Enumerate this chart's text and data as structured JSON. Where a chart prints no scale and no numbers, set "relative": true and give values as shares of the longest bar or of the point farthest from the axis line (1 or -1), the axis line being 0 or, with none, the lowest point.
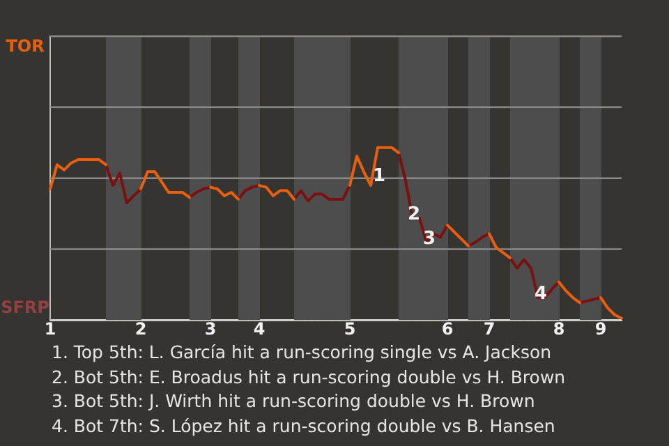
{
  "chart_data": {
    "type": "line",
    "relative": true,
    "categories": [
      "1",
      null,
      null,
      null,
      null,
      null,
      null,
      null,
      null,
      null,
      null,
      null,
      null,
      "2",
      null,
      null,
      null,
      null,
      null,
      null,
      null,
      null,
      null,
      "3",
      null,
      null,
      null,
      null,
      null,
      null,
      "4",
      null,
      null,
      null,
      null,
      null,
      null,
      null,
      null,
      null,
      null,
      null,
      null,
      "5",
      null,
      null,
      null,
      null,
      null,
      null,
      null,
      null,
      null,
      null,
      null,
      null,
      null,
      "6",
      null,
      null,
      null,
      null,
      null,
      "7",
      null,
      null,
      null,
      null,
      null,
      null,
      null,
      null,
      null,
      "8",
      null,
      null,
      null,
      null,
      null,
      "9",
      null,
      null,
      null
    ],
    "marker": "none",
    "series": [
      {
        "color": "#e8600c",
        "values": [
          0.76,
          0.9,
          0.87,
          0.91,
          0.93,
          0.93,
          0.93,
          0.93,
          0.9,
          null,
          null,
          null,
          null,
          0.76,
          0.86,
          0.86,
          0.8,
          0.74,
          0.74,
          0.74,
          0.71,
          null,
          null,
          0.77,
          0.76,
          0.72,
          0.74,
          0.7,
          null,
          null,
          0.78,
          0.77,
          0.72,
          0.75,
          0.75,
          0.7,
          null,
          null,
          null,
          null,
          null,
          null,
          null,
          0.78,
          0.95,
          0.86,
          0.78,
          1,
          1,
          1,
          0.97,
          null,
          null,
          null,
          null,
          null,
          null,
          0.55,
          0.51,
          0.47,
          0.43,
          null,
          null,
          0.5,
          0.42,
          0.39,
          0.36,
          null,
          null,
          null,
          null,
          null,
          null,
          0.22,
          0.17,
          0.13,
          0.1,
          null,
          null,
          0.13,
          0.07,
          0.03,
          0.01
        ]
      },
      {
        "color": "#7a1010",
        "values": [
          null,
          null,
          null,
          null,
          null,
          null,
          null,
          null,
          0.9,
          0.78,
          0.85,
          0.68,
          0.72,
          0.76,
          null,
          null,
          null,
          null,
          null,
          null,
          0.71,
          0.74,
          0.76,
          0.77,
          null,
          null,
          null,
          0.7,
          0.75,
          0.77,
          0.78,
          null,
          null,
          null,
          null,
          0.7,
          0.75,
          0.69,
          0.73,
          0.73,
          0.7,
          0.7,
          0.7,
          0.78,
          null,
          null,
          null,
          null,
          null,
          null,
          0.97,
          0.81,
          0.59,
          0.59,
          0.45,
          0.5,
          0.48,
          0.55,
          null,
          null,
          0.43,
          0.45,
          0.48,
          0.5,
          null,
          null,
          0.36,
          0.3,
          0.35,
          0.3,
          0.13,
          0.13,
          0.18,
          0.22,
          null,
          null,
          0.1,
          0.11,
          0.12,
          0.13,
          null,
          null,
          null
        ]
      }
    ],
    "ref_lines": [
      {
        "axis": "y",
        "value": 0.411,
        "color": "#8a8a8a"
      },
      {
        "axis": "y",
        "value": 0.822,
        "color": "#8a8a8a"
      },
      {
        "axis": "y",
        "value": 1.234,
        "color": "#8a8a8a"
      },
      {
        "axis": "y",
        "value": 1.645,
        "color": "#8a8a8a"
      }
    ],
    "annotations": [
      "TOR",
      "SFRP",
      {
        "text": "1",
        "y": 0.83
      },
      {
        "text": "2",
        "y": 0.61
      },
      {
        "text": "3",
        "y": 0.47
      },
      {
        "text": "4",
        "y": 0.15
      },
      "1. Top 5th: L. García hit a run-scoring single vs A. Jackson",
      "2. Bot 5th: E. Broadus hit a run-scoring double vs H. Brown",
      "3. Bot 5th: J. Wirth hit a run-scoring double vs H. Brown",
      "4. Bot 7th: S. López hit a run-scoring double vs B. Hansen"
    ]
  }
}
